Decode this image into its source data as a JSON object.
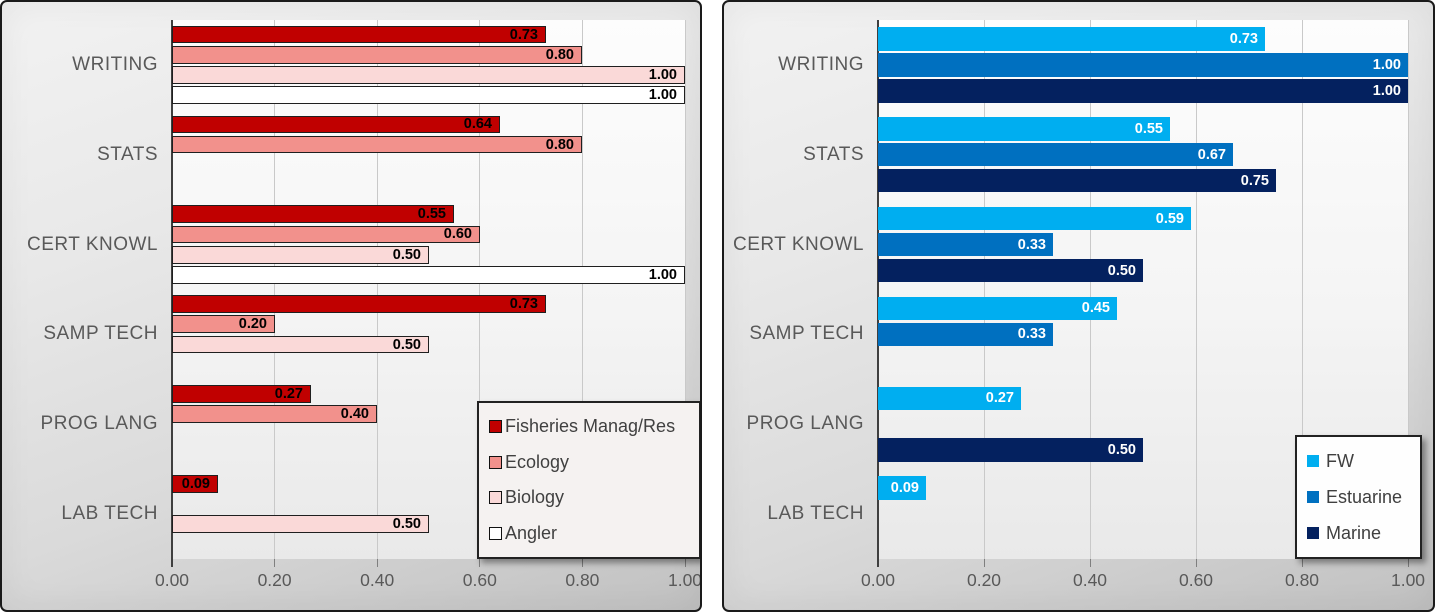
{
  "styles": {
    "text_color": "#595959",
    "legend_text_color": "#404040",
    "gridline_color": "#C9C9C9",
    "axis_color": "#3F3F3F"
  },
  "chart_data": [
    {
      "id": "left",
      "type": "bar",
      "orientation": "horizontal",
      "title": "",
      "xlabel": "",
      "ylabel": "",
      "xlim": [
        0,
        1
      ],
      "grid": true,
      "x_ticks": [
        "0.00",
        "0.20",
        "0.40",
        "0.60",
        "0.80",
        "1.00"
      ],
      "categories": [
        "WRITING",
        "STATS",
        "CERT KNOWL",
        "SAMP TECH",
        "PROG LANG",
        "LAB TECH"
      ],
      "series": [
        {
          "name": "Fisheries Manag/Res",
          "color": "#C00000",
          "values": [
            0.73,
            0.64,
            0.55,
            0.73,
            0.27,
            0.09
          ]
        },
        {
          "name": "Ecology",
          "color": "#F2918C",
          "values": [
            0.8,
            0.8,
            0.6,
            0.2,
            0.4,
            null
          ]
        },
        {
          "name": "Biology",
          "color": "#FAD9D8",
          "values": [
            1.0,
            null,
            0.5,
            0.5,
            null,
            0.5
          ]
        },
        {
          "name": "Angler",
          "color": "#FFFFFF",
          "values": [
            1.0,
            null,
            1.0,
            null,
            null,
            null
          ]
        }
      ],
      "value_label_color": "#000000",
      "bar_outline": true,
      "legend_position": "inside-bottom-right",
      "legend_background": "#F5F2F1"
    },
    {
      "id": "right",
      "type": "bar",
      "orientation": "horizontal",
      "title": "",
      "xlabel": "",
      "ylabel": "",
      "xlim": [
        0,
        1
      ],
      "grid": true,
      "x_ticks": [
        "0.00",
        "0.20",
        "0.40",
        "0.60",
        "0.80",
        "1.00"
      ],
      "categories": [
        "WRITING",
        "STATS",
        "CERT KNOWL",
        "SAMP TECH",
        "PROG LANG",
        "LAB TECH"
      ],
      "series": [
        {
          "name": "FW",
          "color": "#00AEF0",
          "values": [
            0.73,
            0.55,
            0.59,
            0.45,
            0.27,
            0.09
          ]
        },
        {
          "name": "Estuarine",
          "color": "#0070C0",
          "values": [
            1.0,
            0.67,
            0.33,
            0.33,
            null,
            null
          ]
        },
        {
          "name": "Marine",
          "color": "#04215F",
          "values": [
            1.0,
            0.75,
            0.5,
            null,
            0.5,
            null
          ]
        }
      ],
      "value_label_color": "#FFFFFF",
      "bar_outline": false,
      "legend_position": "inside-bottom-right",
      "legend_background": "#FEFEFE"
    }
  ]
}
